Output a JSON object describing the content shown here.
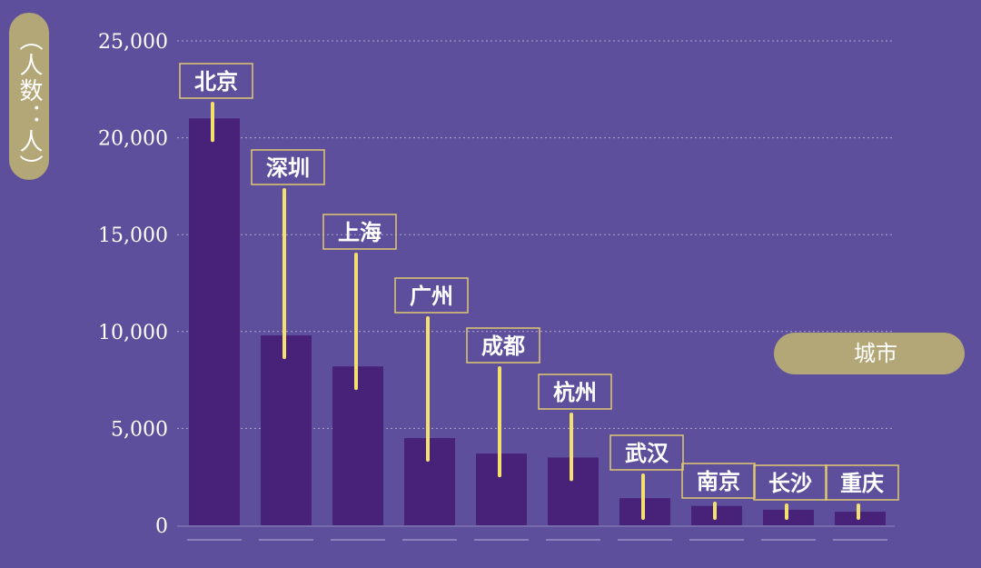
{
  "chart_data": {
    "type": "bar",
    "title": "",
    "xlabel": "城市",
    "ylabel": "（人数：人）",
    "ylim": [
      0,
      25000
    ],
    "yticks": [
      {
        "value": 0,
        "label": "0"
      },
      {
        "value": 5000,
        "label": "5,000"
      },
      {
        "value": 10000,
        "label": "10,000"
      },
      {
        "value": 15000,
        "label": "15,000"
      },
      {
        "value": 20000,
        "label": "20,000"
      },
      {
        "value": 25000,
        "label": "25,000"
      }
    ],
    "grid": true,
    "categories": [
      "北京",
      "深圳",
      "上海",
      "广州",
      "成都",
      "杭州",
      "武汉",
      "南京",
      "长沙",
      "重庆"
    ],
    "values": [
      21000,
      9800,
      8200,
      4500,
      3700,
      3500,
      1400,
      1000,
      800,
      700
    ]
  },
  "colors": {
    "background": "#5d4f9c",
    "bar": "#472278",
    "label_box": "#ffffff",
    "label_border": "#e0c870",
    "leader_line": "#f3e06e",
    "pill": "#b3a677",
    "grid": "#c4bde0"
  }
}
